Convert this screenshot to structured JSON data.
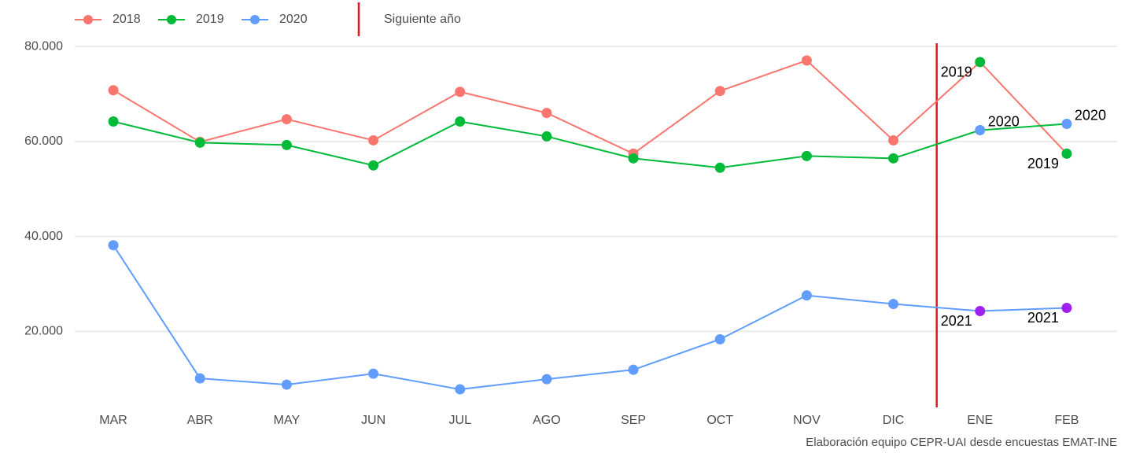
{
  "chart_data": {
    "type": "line",
    "categories": [
      "MAR",
      "ABR",
      "MAY",
      "JUN",
      "JUL",
      "AGO",
      "SEP",
      "OCT",
      "NOV",
      "DIC",
      "ENE",
      "FEB"
    ],
    "series": [
      {
        "name": "2018",
        "color": "#f8766d",
        "next_color": "#00ba38",
        "next_label": "2019",
        "values": [
          70780,
          59900,
          64680,
          60230,
          70450,
          66000,
          57430,
          70620,
          77050,
          60230,
          76720,
          57430
        ]
      },
      {
        "name": "2019",
        "color": "#00ba38",
        "next_color": "#619cff",
        "next_label": "2020",
        "values": [
          64190,
          59740,
          59240,
          54950,
          64190,
          61060,
          56440,
          54460,
          56930,
          56440,
          62370,
          63690
        ]
      },
      {
        "name": "2020",
        "color": "#619cff",
        "next_color": "#a020f0",
        "next_label": "2021",
        "values": [
          38140,
          10110,
          8790,
          11100,
          7800,
          9940,
          11920,
          18350,
          27580,
          25770,
          24290,
          24950
        ]
      }
    ],
    "divider_label": "Siguiente año",
    "divider_color": "#e8141c",
    "ylim": [
      4000,
      81500
    ],
    "yticks": [
      {
        "value": 20000,
        "label": "20.000"
      },
      {
        "value": 40000,
        "label": "40.000"
      },
      {
        "value": 60000,
        "label": "60.000"
      },
      {
        "value": 80000,
        "label": "80.000"
      }
    ],
    "grid": true,
    "legend": "top-left",
    "caption": "Elaboración equipo CEPR-UAI desde encuestas EMAT-INE"
  }
}
